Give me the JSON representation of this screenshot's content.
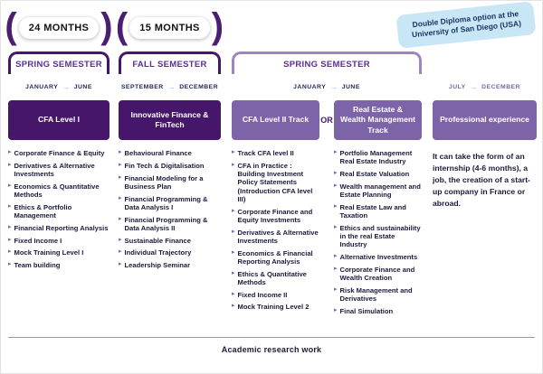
{
  "icons": {
    "bullet": "▸",
    "arrow": "→",
    "paren_open": "(",
    "paren_close": ")"
  },
  "badges": {
    "duration_1": "24 MONTHS",
    "duration_2": "15 MONTHS",
    "double_diploma": "Double Diploma option at the University of San Diego (USA)"
  },
  "headers": [
    {
      "title": "SPRING SEMESTER",
      "from": "JANUARY",
      "to": "JUNE"
    },
    {
      "title": "FALL SEMESTER",
      "from": "SEPTEMBER",
      "to": "DECEMBER"
    },
    {
      "title": "SPRING SEMESTER",
      "from": "JANUARY",
      "to": "JUNE"
    },
    {
      "title": "",
      "from": "JULY",
      "to": "DECEMBER"
    }
  ],
  "or_label": "OR",
  "tracks": [
    {
      "title": "CFA Level I",
      "items": [
        "Corporate Finance & Equity",
        "Derivatives & Alternative Investments",
        "Economics & Quantitative Methods",
        "Ethics & Portfolio Management",
        "Financial Reporting Analysis",
        "Fixed Income I",
        "Mock Training Level I",
        "Team building"
      ]
    },
    {
      "title": "Innovative Finance & FinTech",
      "items": [
        "Behavioural Finance",
        "Fin Tech & Digitalisation",
        "Financial Modeling for a Business Plan",
        "Financial Programming & Data Analysis I",
        "Financial Programming & Data Analysis II",
        "Sustainable Finance",
        "Individual Trajectory",
        "Leadership Seminar"
      ]
    },
    {
      "title": "CFA Level II Track",
      "items": [
        "Track CFA level II",
        "CFA in Practice : Building Investment Policy Statements (Introduction CFA level III)",
        "Corporate Finance and Equity Investments",
        "Derivatives & Alternative Investments",
        "Economics & Financial Reporting Analysis",
        "Ethics & Quantitative Methods",
        "Fixed Income II",
        "Mock Training Level 2"
      ]
    },
    {
      "title": "Real Estate & Wealth Management Track",
      "items": [
        "Portfolio Management Real Estate Industry",
        "Real Estate Valuation",
        "Wealth management and Estate Planning",
        "Real Estate Law and Taxation",
        "Ethics and sustainability in the real Estate Industry",
        "Alternative Investments",
        "Corporate Finance and Wealth Creation",
        "Risk Management and Derivatives",
        "Final Simulation"
      ]
    },
    {
      "title": "Professional experience",
      "description": "It can take the form of an internship (4-6 months), a job, the creation of a start-up company in France or abroad."
    }
  ],
  "footer": "Academic research work",
  "colors": {
    "dark_purple": "#46166B",
    "medium_purple": "#7D64A8",
    "light_bracket_purple": "#9C86C0",
    "title_purple": "#5B2F91",
    "badge_blue_bg": "#C9E6F6",
    "badge_blue_text": "#17355E",
    "arrow_blue": "#9DB8E0",
    "body_text": "#1A1A3A"
  }
}
